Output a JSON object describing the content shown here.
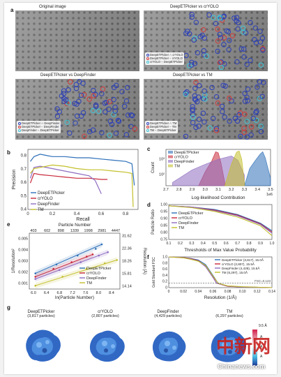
{
  "panels": {
    "a": {
      "label": "a",
      "titles": [
        "Original image",
        "DeepETPicker vs crYOLO",
        "DeepETPicker vs DeepFinder",
        "DeepETPicker vs TM"
      ],
      "legends": [
        [
          "DeepETPicker ∩ crYOLO",
          "DeepETPicker − crYOLO",
          "crYOLO − DeepETPicker"
        ],
        [
          "DeepETPicker ∩ DeepFinder",
          "DeepETPicker − DeepFinder",
          "DeepFinder − DeepETPicker"
        ],
        [
          "DeepETPicker ∩ TM",
          "DeepETPicker − TM",
          "TM − DeepETPicker"
        ]
      ]
    },
    "b": {
      "label": "b"
    },
    "c": {
      "label": "c"
    },
    "d": {
      "label": "d"
    },
    "e": {
      "label": "e"
    },
    "f": {
      "label": "f"
    },
    "g": {
      "label": "g",
      "maps": [
        {
          "name": "DeepETPicker",
          "count": "(3,817 particles)"
        },
        {
          "name": "crYOLO",
          "count": "(2,807 particles)"
        },
        {
          "name": "DeepFinder",
          "count": "(4,429 particles)"
        },
        {
          "name": "TM",
          "count": "(6,297 particles)"
        }
      ],
      "scale": {
        "top": "9.5 Å",
        "letters": [
          "A",
          "A",
          "A"
        ]
      }
    }
  },
  "colors": {
    "deepet": "#2d6fb8",
    "cryolo": "#c8283a",
    "deepfinder": "#8e6cc0",
    "tm": "#c3bf2a",
    "cyan": "#3fc6d8",
    "blue_circle": "#2b3fb8",
    "red_circle": "#d23a3a"
  },
  "watermark": {
    "brand": "中新网",
    "site": "Chinanews.com"
  },
  "chart_data": [
    {
      "type": "line",
      "panel": "b",
      "xlabel": "Recall",
      "ylabel": "Precision",
      "xlim": [
        0,
        1
      ],
      "ylim": [
        0.4,
        0.9
      ],
      "xticks": [
        "0",
        "0.2",
        "0.4",
        "0.6",
        "0.8"
      ],
      "yticks": [
        "0.4",
        "0.5",
        "0.6",
        "0.7",
        "0.8"
      ],
      "legend_position": "bottom-left",
      "series": [
        {
          "name": "DeepETPicker",
          "x": [
            0.02,
            0.05,
            0.1,
            0.15,
            0.2,
            0.3,
            0.4,
            0.5,
            0.6,
            0.7,
            0.8,
            0.85,
            0.87
          ],
          "y": [
            0.8,
            0.84,
            0.86,
            0.85,
            0.84,
            0.84,
            0.83,
            0.83,
            0.82,
            0.81,
            0.8,
            0.78,
            0.6
          ]
        },
        {
          "name": "crYOLO",
          "x": [
            0.02,
            0.05,
            0.1,
            0.2,
            0.3,
            0.4,
            0.5,
            0.6,
            0.65
          ],
          "y": [
            0.62,
            0.7,
            0.69,
            0.68,
            0.67,
            0.66,
            0.66,
            0.65,
            0.65
          ]
        },
        {
          "name": "DeepFinder",
          "x": [
            0.02,
            0.05,
            0.1,
            0.2,
            0.3,
            0.4,
            0.5,
            0.55,
            0.6
          ],
          "y": [
            0.66,
            0.75,
            0.76,
            0.74,
            0.72,
            0.7,
            0.68,
            0.64,
            0.53
          ]
        },
        {
          "name": "TM",
          "x": [
            0.02,
            0.05,
            0.1,
            0.2,
            0.3,
            0.4,
            0.5,
            0.6,
            0.7,
            0.8,
            0.85,
            0.86
          ],
          "y": [
            0.7,
            0.74,
            0.75,
            0.77,
            0.76,
            0.74,
            0.73,
            0.73,
            0.72,
            0.71,
            0.7,
            0.42
          ]
        }
      ]
    },
    {
      "type": "area",
      "panel": "c",
      "xlabel": "Log-likelihood Contribution",
      "ylabel": "Count",
      "xlim": [
        2.7,
        3.5
      ],
      "scale_note": "1e6",
      "xticks": [
        "2.7",
        "2.8",
        "2.9",
        "3.0",
        "3.1",
        "3.2",
        "3.3",
        "3.4",
        "3.5"
      ],
      "yticks": [
        "10²",
        "10³"
      ],
      "legend_position": "top-left",
      "series": [
        {
          "name": "DeepETPicker",
          "x": [
            3.3,
            3.34,
            3.38,
            3.42,
            3.44,
            3.46,
            3.5
          ],
          "y": [
            1,
            40,
            200,
            900,
            1500,
            400,
            5
          ]
        },
        {
          "name": "crYOLO",
          "x": [
            2.95,
            3.0,
            3.05,
            3.08,
            3.1,
            3.12,
            3.15
          ],
          "y": [
            1,
            20,
            200,
            1500,
            1200,
            150,
            2
          ]
        },
        {
          "name": "DeepFinder",
          "x": [
            2.75,
            2.9,
            3.0,
            3.1,
            3.2,
            3.25,
            3.3
          ],
          "y": [
            2,
            30,
            100,
            300,
            600,
            250,
            10
          ]
        },
        {
          "name": "TM",
          "x": [
            3.15,
            3.2,
            3.24,
            3.26,
            3.28,
            3.3
          ],
          "y": [
            1,
            100,
            1400,
            1800,
            300,
            2
          ]
        }
      ]
    },
    {
      "type": "line",
      "panel": "d",
      "xlabel": "Thresholds of Max Value Probability",
      "ylabel": "Particle Ratio",
      "xlim": [
        0.1,
        1.0
      ],
      "ylim": [
        0.7,
        1.0
      ],
      "xticks": [
        "0.1",
        "0.2",
        "0.3",
        "0.4",
        "0.5",
        "0.6",
        "0.7",
        "0.8",
        "0.9",
        "1.0"
      ],
      "yticks": [
        "0.75",
        "0.80",
        "0.85",
        "0.90",
        "0.95",
        "1.00"
      ],
      "legend_position": "bottom-left",
      "series": [
        {
          "name": "DeepETPicker",
          "x": [
            0.1,
            0.3,
            0.5,
            0.7,
            0.9,
            1.0
          ],
          "y": [
            1.0,
            0.99,
            0.97,
            0.93,
            0.86,
            0.8
          ]
        },
        {
          "name": "crYOLO",
          "x": [
            0.1,
            0.3,
            0.5,
            0.7,
            0.9,
            1.0
          ],
          "y": [
            1.0,
            0.99,
            0.965,
            0.925,
            0.855,
            0.79
          ]
        },
        {
          "name": "DeepFinder",
          "x": [
            0.1,
            0.3,
            0.5,
            0.7,
            0.9,
            1.0
          ],
          "y": [
            1.0,
            0.99,
            0.96,
            0.92,
            0.85,
            0.78
          ]
        },
        {
          "name": "TM",
          "x": [
            0.1,
            0.3,
            0.5,
            0.7,
            0.9,
            1.0
          ],
          "y": [
            1.0,
            0.985,
            0.955,
            0.91,
            0.84,
            0.76
          ]
        }
      ]
    },
    {
      "type": "scatter",
      "panel": "e",
      "xlabel": "ln(Particle Number)",
      "ylabel": "1/Resolution²",
      "top_xlabel": "Particle Number",
      "right_ylabel": "Resolution (Å)",
      "xlim": [
        5.8,
        8.8
      ],
      "ylim": [
        0.001,
        0.006
      ],
      "xticks": [
        "6.0",
        "6.4",
        "6.8",
        "7.2",
        "7.6",
        "8.0",
        "8.4"
      ],
      "yticks": [
        "0.001",
        "0.002",
        "0.003",
        "0.004",
        "0.005"
      ],
      "top_xticks": [
        "403",
        "602",
        "898",
        "1339",
        "1998",
        "2981",
        "4447"
      ],
      "right_yticks": [
        "14.14",
        "15.81",
        "18.26",
        "22.36",
        "31.62"
      ],
      "legend_position": "bottom-right",
      "series": [
        {
          "name": "DeepETPicker",
          "x": [
            6.0,
            6.7,
            7.4,
            8.0,
            8.2
          ],
          "y": [
            0.0024,
            0.0032,
            0.004,
            0.0046,
            0.005
          ]
        },
        {
          "name": "crYOLO",
          "x": [
            6.0,
            6.6,
            7.2,
            7.7,
            7.9
          ],
          "y": [
            0.0021,
            0.0028,
            0.0034,
            0.0039,
            0.0041
          ]
        },
        {
          "name": "DeepFinder",
          "x": [
            6.0,
            6.8,
            7.5,
            8.1,
            8.4
          ],
          "y": [
            0.0019,
            0.0027,
            0.0034,
            0.004,
            0.0043
          ]
        },
        {
          "name": "TM",
          "x": [
            6.0,
            6.9,
            7.7,
            8.3,
            8.7
          ],
          "y": [
            0.0013,
            0.0021,
            0.0028,
            0.0033,
            0.0036
          ]
        }
      ]
    },
    {
      "type": "line",
      "panel": "f",
      "xlabel": "Resolution (1/Å)",
      "ylabel": "Gold Standard FSC",
      "xlim": [
        0,
        0.14
      ],
      "ylim": [
        0,
        1.0
      ],
      "xticks": [
        "0",
        "0.02",
        "0.04",
        "0.06",
        "0.08",
        "0.10",
        "0.12",
        "0.14"
      ],
      "yticks": [
        "0",
        "0.2",
        "0.4",
        "0.6",
        "0.8",
        "1.0"
      ],
      "threshold": {
        "label": "FSC=0.143",
        "value": 0.143
      },
      "legend_position": "top-right",
      "series": [
        {
          "name": "DeepETPicker (3,817), 15.0Å",
          "x": [
            0,
            0.02,
            0.03,
            0.04,
            0.05,
            0.06,
            0.067,
            0.08,
            0.1,
            0.14
          ],
          "y": [
            1.0,
            0.98,
            0.95,
            0.9,
            0.75,
            0.4,
            0.143,
            0.05,
            0.02,
            0.0
          ]
        },
        {
          "name": "crYOLO (2,807), 15.5Å",
          "x": [
            0,
            0.02,
            0.03,
            0.04,
            0.05,
            0.06,
            0.065,
            0.08,
            0.1,
            0.14
          ],
          "y": [
            1.0,
            0.98,
            0.94,
            0.88,
            0.7,
            0.35,
            0.143,
            0.04,
            0.02,
            0.0
          ]
        },
        {
          "name": "DeepFinder (4,429), 15.5Å",
          "x": [
            0,
            0.02,
            0.03,
            0.04,
            0.05,
            0.06,
            0.065,
            0.08,
            0.1,
            0.14
          ],
          "y": [
            1.0,
            0.97,
            0.93,
            0.87,
            0.68,
            0.33,
            0.143,
            0.05,
            0.02,
            0.0
          ]
        },
        {
          "name": "TM (6,297), 15.0Å",
          "x": [
            0,
            0.02,
            0.03,
            0.04,
            0.05,
            0.06,
            0.067,
            0.08,
            0.1,
            0.14
          ],
          "y": [
            1.0,
            0.97,
            0.92,
            0.86,
            0.72,
            0.38,
            0.143,
            0.06,
            0.03,
            0.0
          ]
        }
      ]
    }
  ]
}
